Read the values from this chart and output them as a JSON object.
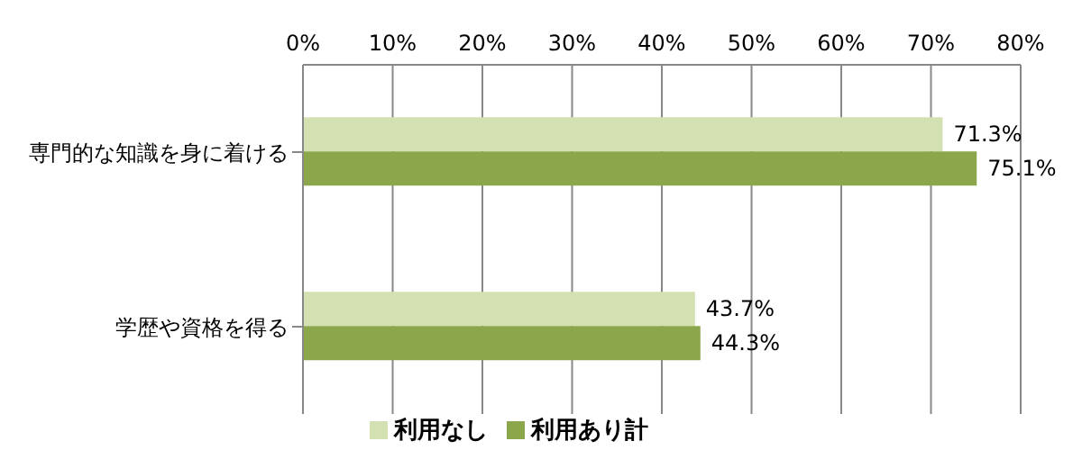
{
  "chart_data": {
    "type": "bar",
    "orientation": "horizontal",
    "categories": [
      "専門的な知識を身に着ける",
      "学歴や資格を得る"
    ],
    "series": [
      {
        "name": "利用なし",
        "color": "#d3e0b1",
        "values": [
          71.3,
          43.7
        ],
        "value_labels": [
          "71.3%",
          "43.7%"
        ]
      },
      {
        "name": "利用あり計",
        "color": "#8ba64b",
        "values": [
          75.1,
          44.3
        ],
        "value_labels": [
          "75.1%",
          "44.3%"
        ]
      }
    ],
    "xlim": [
      0,
      80
    ],
    "xticks": [
      {
        "value": 0,
        "label": "0%"
      },
      {
        "value": 10,
        "label": "10%"
      },
      {
        "value": 20,
        "label": "20%"
      },
      {
        "value": 30,
        "label": "30%"
      },
      {
        "value": 40,
        "label": "40%"
      },
      {
        "value": 50,
        "label": "50%"
      },
      {
        "value": 60,
        "label": "60%"
      },
      {
        "value": 70,
        "label": "70%"
      },
      {
        "value": 80,
        "label": "80%"
      }
    ],
    "grid": "x",
    "legend": "bottom"
  }
}
